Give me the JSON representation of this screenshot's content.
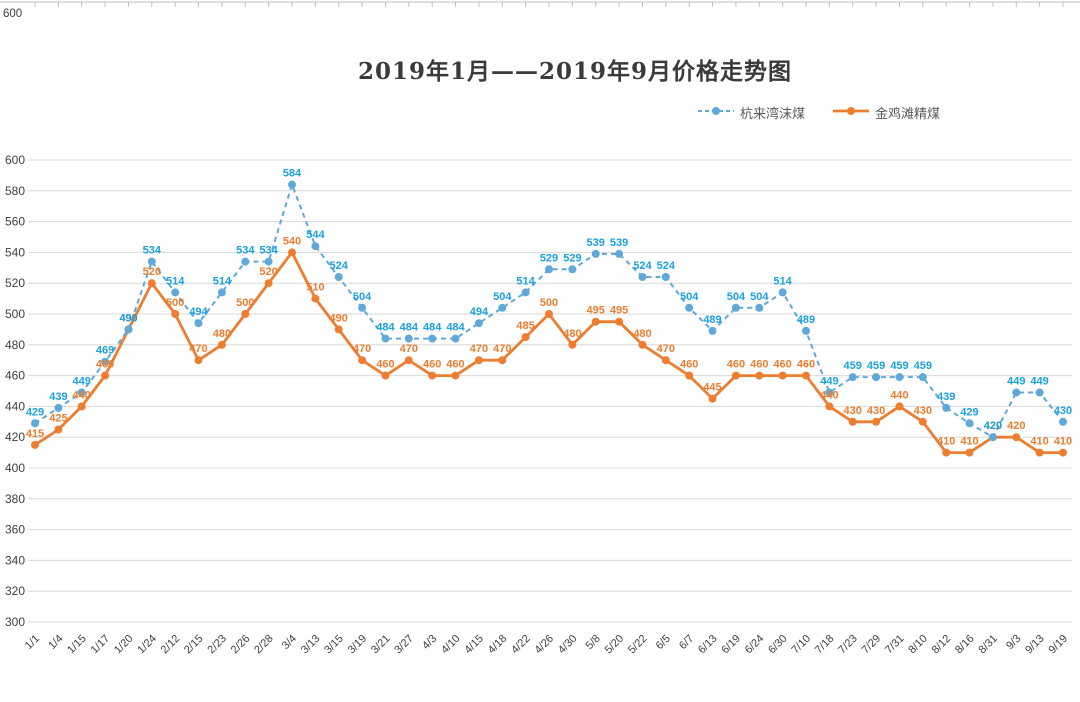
{
  "top_edge": {
    "label": "600"
  },
  "chart_data": {
    "type": "line",
    "title": "2019年1月——2019年9月价格走势图",
    "xlabel": "",
    "ylabel": "",
    "ylim": [
      300,
      600
    ],
    "ytick_step": 20,
    "grid": true,
    "grid_color": "#D9D9D9",
    "tick_label_color": "#404040",
    "legend_position": "top-right",
    "categories": [
      "1/1",
      "1/4",
      "1/15",
      "1/17",
      "1/20",
      "1/24",
      "2/12",
      "2/15",
      "2/23",
      "2/26",
      "2/28",
      "3/4",
      "3/13",
      "3/15",
      "3/19",
      "3/21",
      "3/27",
      "4/3",
      "4/10",
      "4/15",
      "4/18",
      "4/22",
      "4/26",
      "4/30",
      "5/8",
      "5/20",
      "5/22",
      "6/5",
      "6/7",
      "6/13",
      "6/19",
      "6/24",
      "6/30",
      "7/10",
      "7/18",
      "7/23",
      "7/29",
      "7/31",
      "8/10",
      "8/12",
      "8/16",
      "8/31",
      "9/3",
      "9/13",
      "9/19"
    ],
    "series": [
      {
        "name": "杭来湾沫煤",
        "style": "dashed",
        "color": "#5FA8D8",
        "label_color": "#1BA0E1",
        "values": [
          429,
          439,
          449,
          469,
          490,
          534,
          514,
          494,
          514,
          534,
          534,
          584,
          544,
          524,
          504,
          484,
          484,
          484,
          484,
          494,
          504,
          514,
          529,
          529,
          539,
          539,
          524,
          524,
          504,
          489,
          504,
          504,
          514,
          489,
          449,
          459,
          459,
          459,
          459,
          439,
          429,
          420,
          449,
          449,
          430
        ]
      },
      {
        "name": "金鸡滩精煤",
        "style": "solid",
        "color": "#ED7D31",
        "label_color": "#ED7D31",
        "values": [
          415,
          425,
          440,
          460,
          490,
          520,
          500,
          470,
          480,
          500,
          520,
          540,
          510,
          490,
          470,
          460,
          470,
          460,
          460,
          470,
          470,
          485,
          500,
          480,
          495,
          495,
          480,
          470,
          460,
          445,
          460,
          460,
          460,
          460,
          440,
          430,
          430,
          440,
          430,
          410,
          410,
          420,
          420,
          410,
          410
        ]
      }
    ]
  }
}
